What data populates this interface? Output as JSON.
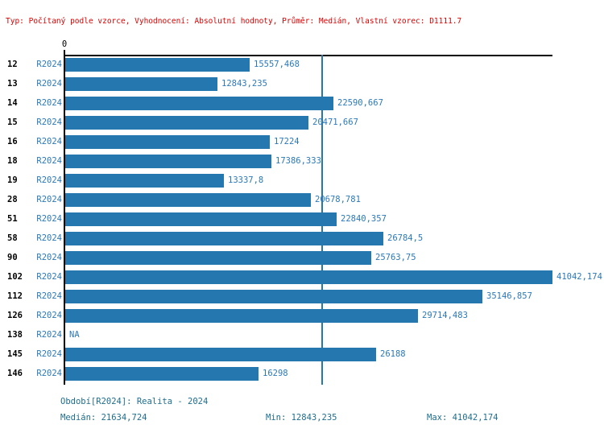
{
  "header": {
    "text": "Typ: Počítaný podle vzorce, Vyhodnocení: Absolutní hodnoty, Průměr: Medián, Vlastní vzorec: D1111.7"
  },
  "colors": {
    "header_red": "#e00000",
    "bar_blue": "#2577b0",
    "label_blue": "#2a79ba",
    "footer_blue": "#1d6e8f",
    "axis_black": "#000000"
  },
  "chart_data": {
    "type": "bar",
    "orientation": "horizontal",
    "x_axis": {
      "zero_tick_label": "0",
      "xlim": [
        0,
        41042.174
      ],
      "grid": false
    },
    "series_name": "R2024",
    "median_value": 21634.724,
    "rows": [
      {
        "category": "12",
        "series": "R2024",
        "value": 15557.468,
        "label": "15557,468"
      },
      {
        "category": "13",
        "series": "R2024",
        "value": 12843.235,
        "label": "12843,235"
      },
      {
        "category": "14",
        "series": "R2024",
        "value": 22590.667,
        "label": "22590,667"
      },
      {
        "category": "15",
        "series": "R2024",
        "value": 20471.667,
        "label": "20471,667"
      },
      {
        "category": "16",
        "series": "R2024",
        "value": 17224,
        "label": "17224"
      },
      {
        "category": "18",
        "series": "R2024",
        "value": 17386.333,
        "label": "17386,333"
      },
      {
        "category": "19",
        "series": "R2024",
        "value": 13337.8,
        "label": "13337,8"
      },
      {
        "category": "28",
        "series": "R2024",
        "value": 20678.781,
        "label": "20678,781"
      },
      {
        "category": "51",
        "series": "R2024",
        "value": 22840.357,
        "label": "22840,357"
      },
      {
        "category": "58",
        "series": "R2024",
        "value": 26784.5,
        "label": "26784,5"
      },
      {
        "category": "90",
        "series": "R2024",
        "value": 25763.75,
        "label": "25763,75"
      },
      {
        "category": "102",
        "series": "R2024",
        "value": 41042.174,
        "label": "41042,174"
      },
      {
        "category": "112",
        "series": "R2024",
        "value": 35146.857,
        "label": "35146,857"
      },
      {
        "category": "126",
        "series": "R2024",
        "value": 29714.483,
        "label": "29714,483"
      },
      {
        "category": "138",
        "series": "R2024",
        "value": null,
        "label": "NA"
      },
      {
        "category": "145",
        "series": "R2024",
        "value": 26188,
        "label": "26188"
      },
      {
        "category": "146",
        "series": "R2024",
        "value": 16298,
        "label": "16298"
      }
    ]
  },
  "footer": {
    "period": "Období[R2024]: Realita - 2024",
    "median": "Medián: 21634,724",
    "min": "Min: 12843,235",
    "max": "Max: 41042,174"
  }
}
